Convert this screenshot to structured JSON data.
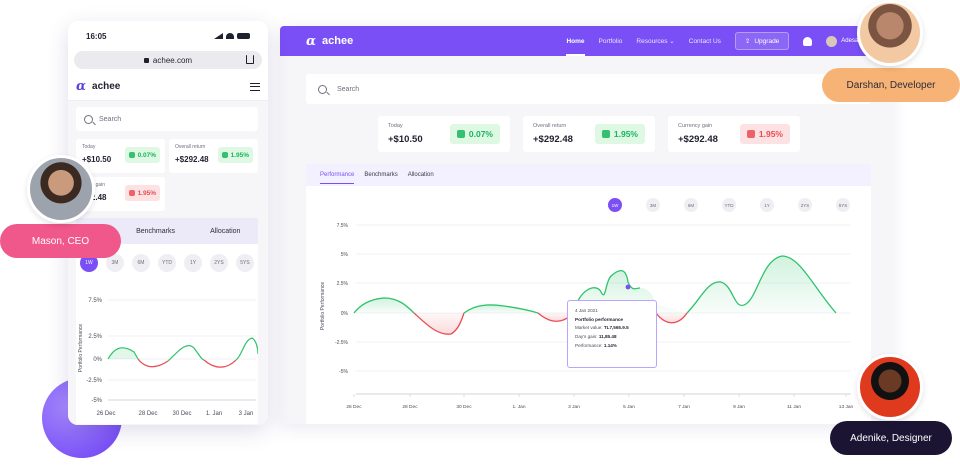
{
  "colors": {
    "accent": "#7a4ff5",
    "gain": "#16b55d",
    "loss": "#ea4b52",
    "gain_bg": "#dff8e4",
    "loss_bg": "#fde2e3"
  },
  "desktop": {
    "brand": "achee",
    "nav": [
      "Home",
      "Portfolio",
      "Resources",
      "Contact Us"
    ],
    "upgrade": "Upgrade",
    "user": "Adesanoye Dol",
    "search_placeholder": "Search",
    "kpis": [
      {
        "title": "Today",
        "value": "+$10.50",
        "pill": "0.07%",
        "trend": "up"
      },
      {
        "title": "Overall return",
        "value": "+$292.48",
        "pill": "1.95%",
        "trend": "up"
      },
      {
        "title": "Currency gain",
        "value": "+$292.48",
        "pill": "1.95%",
        "trend": "down"
      }
    ],
    "tabs": [
      "Performance",
      "Benchmarks",
      "Allocation"
    ],
    "ranges": [
      "1W",
      "3M",
      "6M",
      "YTD",
      "1Y",
      "2YS",
      "5YS"
    ],
    "y_label": "Portfolio Performance",
    "y_ticks": [
      "7.5%",
      "5%",
      "2.5%",
      "0%",
      "-2.5%",
      "-5%"
    ],
    "x_ticks": [
      "26 Dec",
      "28 Dec",
      "30 Dec",
      "1. Jan",
      "3 Jan",
      "5 Jan",
      "7 Jan",
      "9 Jan",
      "11 Jan",
      "13 Jan"
    ],
    "tooltip": {
      "date": "4 Jan 2021",
      "title": "Portfolio performance",
      "market_label": "Market value:",
      "market_value": "TL7,565.9.5",
      "day_label": "Day's gain:",
      "day_value": "11,85.48",
      "perf_label": "Performance:",
      "perf_value": "1.14%"
    }
  },
  "mobile": {
    "time": "16:05",
    "url": "achee.com",
    "brand": "achee",
    "search_placeholder": "Search",
    "kpis": [
      {
        "title": "Today",
        "value": "+$10.50",
        "pill": "0.07%",
        "trend": "up"
      },
      {
        "title": "Overall return",
        "value": "+$292.48",
        "pill": "1.95%",
        "trend": "up"
      },
      {
        "title": "rency gain",
        "value": "292.48",
        "pill": "1.95%",
        "trend": "down"
      }
    ],
    "tabs": [
      "ce",
      "Benchmarks",
      "Allocation"
    ],
    "ranges": [
      "1W",
      "3M",
      "6M",
      "YTD",
      "1Y",
      "2YS",
      "5YS"
    ],
    "y_label": "Portfolio Performance",
    "y_ticks": [
      "7.5%",
      "2.5%",
      "0%",
      "-2.5%",
      "-5%"
    ],
    "x_ticks": [
      "26 Dec",
      "28 Dec",
      "30 Dec",
      "1. Jan",
      "3 Jan"
    ]
  },
  "people": [
    {
      "name": "Darshan, Developer"
    },
    {
      "name": "Mason, CEO"
    },
    {
      "name": "Adenike, Designer"
    }
  ]
}
